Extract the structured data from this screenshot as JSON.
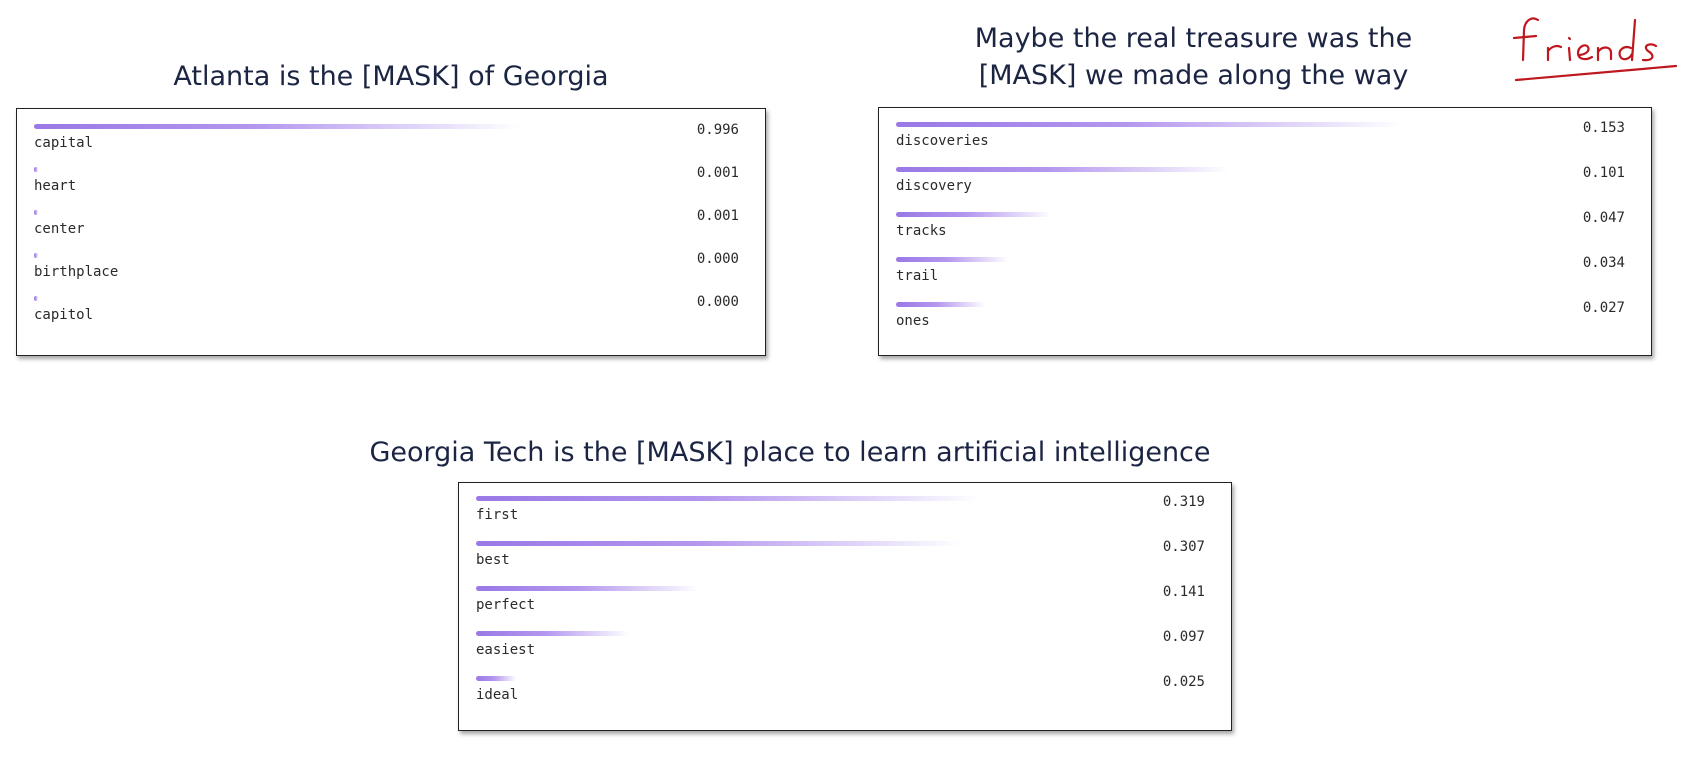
{
  "panels": [
    {
      "title": [
        "Atlanta is the [MASK] of Georgia"
      ],
      "predictions": [
        {
          "token": "capital",
          "score": "0.996",
          "bar_fraction": 0.996
        },
        {
          "token": "heart",
          "score": "0.001",
          "bar_fraction": 0.001
        },
        {
          "token": "center",
          "score": "0.001",
          "bar_fraction": 0.001
        },
        {
          "token": "birthplace",
          "score": "0.000",
          "bar_fraction": 0.0
        },
        {
          "token": "capitol",
          "score": "0.000",
          "bar_fraction": 0.0
        }
      ]
    },
    {
      "title": [
        "Maybe the real treasure was the",
        "[MASK] we made along the way"
      ],
      "predictions": [
        {
          "token": "discoveries",
          "score": "0.153",
          "bar_fraction": 0.153
        },
        {
          "token": "discovery",
          "score": "0.101",
          "bar_fraction": 0.101
        },
        {
          "token": "tracks",
          "score": "0.047",
          "bar_fraction": 0.047
        },
        {
          "token": "trail",
          "score": "0.034",
          "bar_fraction": 0.034
        },
        {
          "token": "ones",
          "score": "0.027",
          "bar_fraction": 0.027
        }
      ]
    },
    {
      "title": [
        "Georgia Tech is the [MASK] place to learn artificial intelligence"
      ],
      "predictions": [
        {
          "token": "first",
          "score": "0.319",
          "bar_fraction": 0.319
        },
        {
          "token": "best",
          "score": "0.307",
          "bar_fraction": 0.307
        },
        {
          "token": "perfect",
          "score": "0.141",
          "bar_fraction": 0.141
        },
        {
          "token": "easiest",
          "score": "0.097",
          "bar_fraction": 0.097
        },
        {
          "token": "ideal",
          "score": "0.025",
          "bar_fraction": 0.025
        }
      ]
    }
  ],
  "annotation": {
    "handwritten_text": "friends",
    "ink_color": "#c0171e"
  },
  "colors": {
    "bar": "#9a78e6",
    "title_text": "#1b2442"
  }
}
